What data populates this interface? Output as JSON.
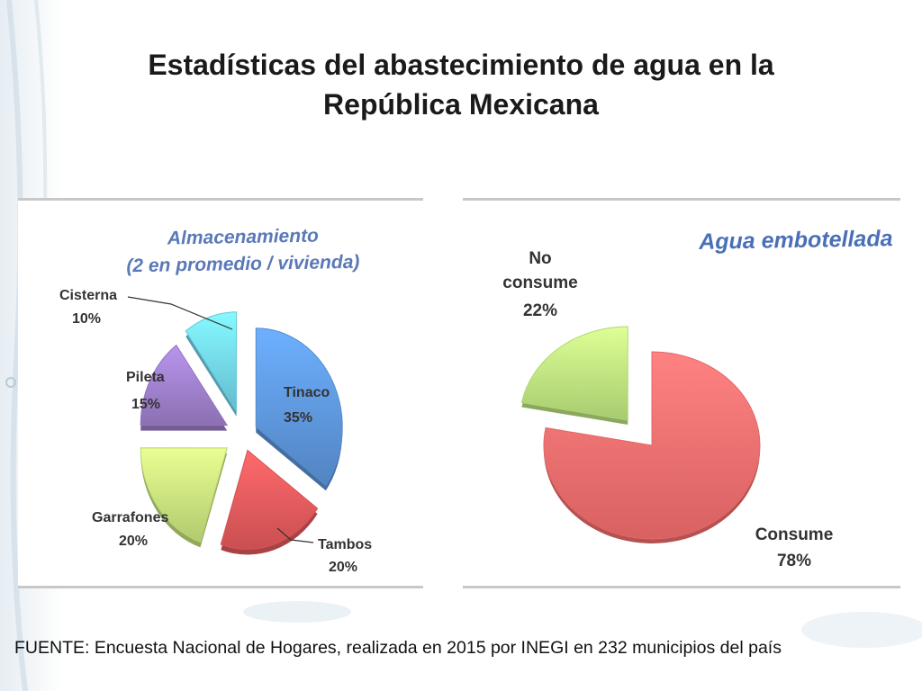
{
  "slide": {
    "title_line1": "Estadísticas del abastecimiento de agua en la",
    "title_line2": "República Mexicana",
    "source": "FUENTE: Encuesta Nacional de Hogares, realizada en 2015 por INEGI en 232 municipios del país"
  },
  "chart_data": [
    {
      "type": "pie",
      "style": "exploded-3d",
      "title_line1": "Almacenamiento",
      "title_line2": "(2 en promedio / vivienda)",
      "slices": [
        {
          "label": "Tinaco",
          "value": 35,
          "pct": "35%",
          "color": "#5b93d6"
        },
        {
          "label": "Tambos",
          "value": 20,
          "pct": "20%",
          "color": "#e0585a"
        },
        {
          "label": "Garrafones",
          "value": 20,
          "pct": "20%",
          "color": "#c3e07a"
        },
        {
          "label": "Pileta",
          "value": 15,
          "pct": "15%",
          "color": "#9a7cc6"
        },
        {
          "label": "Cisterna",
          "value": 10,
          "pct": "10%",
          "color": "#6fd0e6"
        }
      ]
    },
    {
      "type": "pie",
      "style": "exploded-3d",
      "title": "Agua embotellada",
      "slices": [
        {
          "label": "Consume",
          "value": 78,
          "pct": "78%",
          "color": "#f06c6c"
        },
        {
          "label_line1": "No",
          "label_line2": "consume",
          "value": 22,
          "pct": "22%",
          "color": "#b9e17c"
        }
      ]
    }
  ]
}
